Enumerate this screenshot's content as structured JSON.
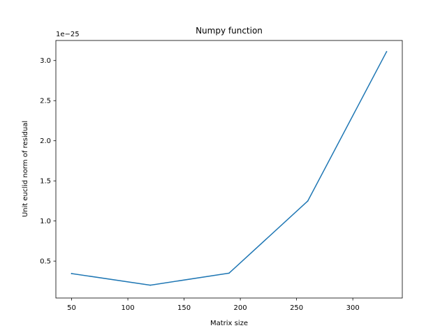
{
  "chart_data": {
    "type": "line",
    "title": "Numpy function",
    "xlabel": "Matrix size",
    "ylabel": "Unit euclid norm of residual",
    "y_offset_text": "1e−25",
    "xlim": [
      36,
      344
    ],
    "ylim": [
      0.04,
      3.25
    ],
    "x_ticks": [
      50,
      100,
      150,
      200,
      250,
      300
    ],
    "x_tick_labels": [
      "50",
      "100",
      "150",
      "200",
      "250",
      "300"
    ],
    "y_ticks": [
      0.5,
      1.0,
      1.5,
      2.0,
      2.5,
      3.0
    ],
    "y_tick_labels": [
      "0.5",
      "1.0",
      "1.5",
      "2.0",
      "2.5",
      "3.0"
    ],
    "grid": false,
    "series": [
      {
        "color": "#1f77b4",
        "x": [
          50,
          120,
          190,
          260,
          330
        ],
        "y": [
          0.345,
          0.2,
          0.35,
          1.25,
          3.11
        ]
      }
    ]
  }
}
